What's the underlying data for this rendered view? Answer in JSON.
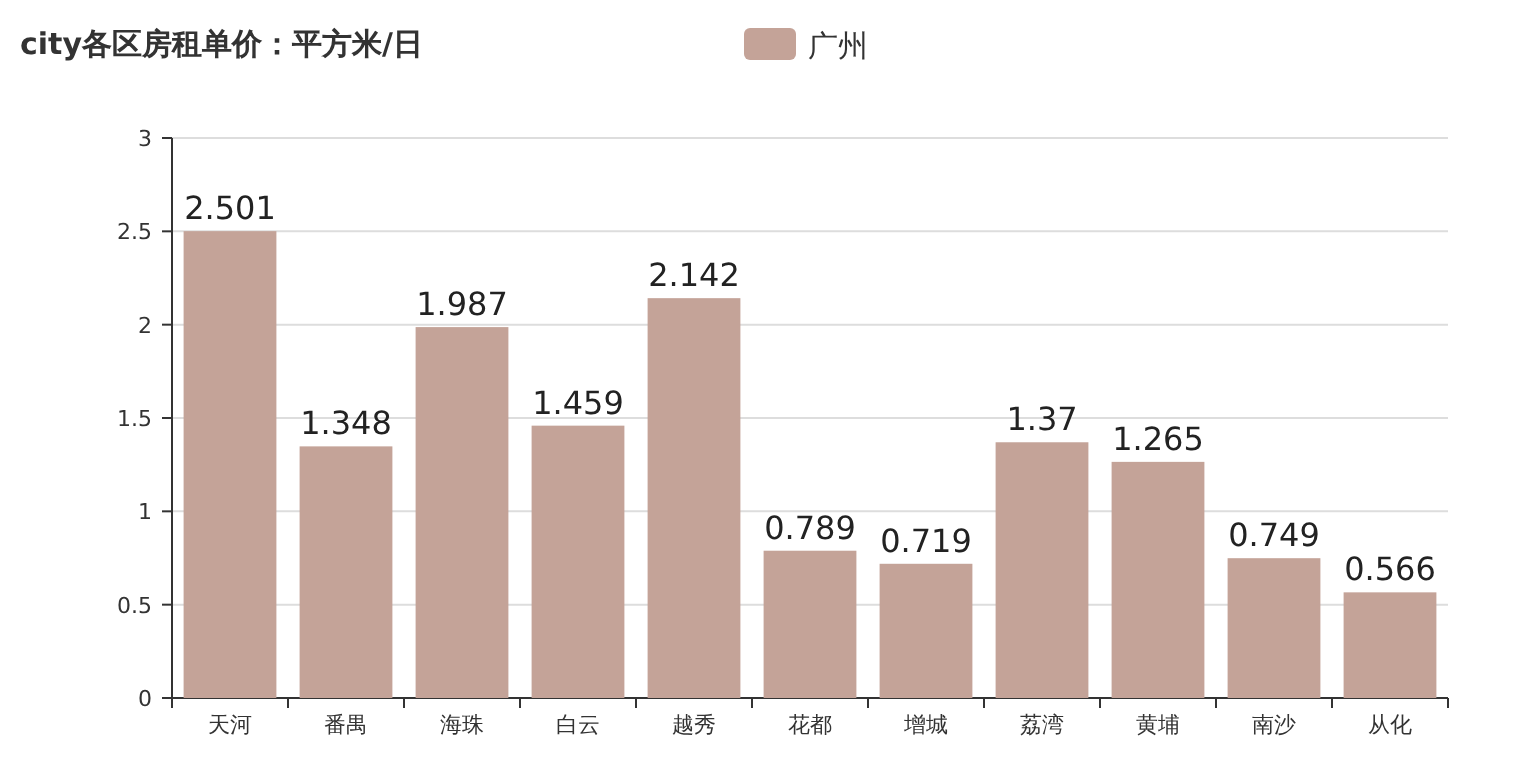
{
  "chart_data": {
    "type": "bar",
    "title": "city各区房租单价：平方米/日",
    "categories": [
      "天河",
      "番禺",
      "海珠",
      "白云",
      "越秀",
      "花都",
      "增城",
      "荔湾",
      "黄埔",
      "南沙",
      "从化"
    ],
    "series": [
      {
        "name": "广州",
        "color": "#c4a398",
        "values": [
          2.501,
          1.348,
          1.987,
          1.459,
          2.142,
          0.789,
          0.719,
          1.37,
          1.265,
          0.749,
          0.566
        ]
      }
    ],
    "ylim": [
      0,
      3
    ],
    "yticks": [
      0,
      0.5,
      1,
      1.5,
      2,
      2.5,
      3
    ],
    "grid": "y",
    "legend": "top",
    "data_labels": true
  }
}
